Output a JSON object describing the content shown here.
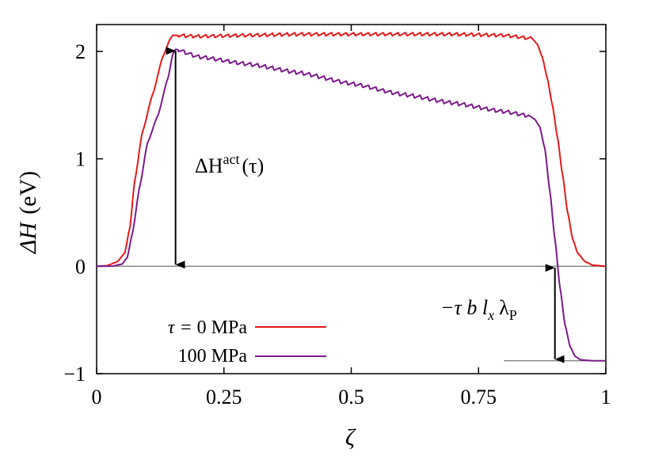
{
  "chart_data": {
    "type": "line",
    "xlabel": "ζ",
    "ylabel_symbol": "ΔH",
    "ylabel_unit": "(eV)",
    "xlim": [
      0,
      1
    ],
    "ylim": [
      -1,
      2.25
    ],
    "x_ticks": [
      0,
      0.25,
      0.5,
      0.75,
      1
    ],
    "x_tick_labels": [
      "0",
      "0.25",
      "0.5",
      "0.75",
      "1"
    ],
    "y_ticks": [
      -1,
      0,
      1,
      2
    ],
    "y_tick_labels": [
      "−1",
      "0",
      "1",
      "2"
    ],
    "grid": false,
    "legend_position": "bottom-left",
    "zero_line": true,
    "series": [
      {
        "name": "τ = 0 MPa",
        "color": "#e41a1c",
        "x": [
          0,
          0.02,
          0.04,
          0.055,
          0.065,
          0.075,
          0.09,
          0.11,
          0.13,
          0.145,
          0.15,
          0.2,
          0.3,
          0.4,
          0.5,
          0.6,
          0.7,
          0.8,
          0.855,
          0.865,
          0.875,
          0.885,
          0.895,
          0.905,
          0.915,
          0.925,
          0.935,
          0.945,
          0.96,
          0.975,
          1
        ],
        "y": [
          0,
          0.005,
          0.04,
          0.12,
          0.35,
          0.8,
          1.25,
          1.6,
          1.95,
          2.12,
          2.15,
          2.14,
          2.15,
          2.16,
          2.16,
          2.16,
          2.16,
          2.15,
          2.12,
          2.07,
          1.95,
          1.75,
          1.5,
          1.2,
          0.85,
          0.5,
          0.25,
          0.12,
          0.04,
          0.01,
          0
        ],
        "ripple_start": 0.16,
        "ripple_end": 0.855,
        "ripple_amp": 0.03
      },
      {
        "name": "100 MPa",
        "color": "#7b1a8a",
        "x": [
          0,
          0.03,
          0.05,
          0.06,
          0.07,
          0.085,
          0.1,
          0.12,
          0.14,
          0.15,
          0.155,
          0.2,
          0.3,
          0.4,
          0.5,
          0.6,
          0.7,
          0.8,
          0.85,
          0.86,
          0.87,
          0.88,
          0.89,
          0.9,
          0.91,
          0.92,
          0.93,
          0.94,
          0.95,
          0.96,
          0.975,
          1
        ],
        "y": [
          0,
          0,
          0.02,
          0.08,
          0.3,
          0.75,
          1.15,
          1.4,
          1.75,
          1.98,
          2.02,
          1.95,
          1.88,
          1.8,
          1.7,
          1.6,
          1.52,
          1.44,
          1.4,
          1.37,
          1.3,
          1.1,
          0.7,
          0.25,
          -0.2,
          -0.55,
          -0.75,
          -0.84,
          -0.87,
          -0.875,
          -0.88,
          -0.88
        ],
        "ripple_start": 0.16,
        "ripple_end": 0.85,
        "ripple_amp": 0.035
      }
    ],
    "legend_prefix": "τ = ",
    "legend_entries": [
      "0 MPa",
      "100 MPa"
    ],
    "annotations": {
      "activation_symbol": "ΔH",
      "activation_sup": "act",
      "activation_arg": "(τ)",
      "activation_arrow": {
        "x": 0.155,
        "y_from": 2.02,
        "y_to": 0
      },
      "work_text_main": "−τ b l",
      "work_sub_x": "x",
      "work_lambda": "λ",
      "work_sub_p": "P",
      "work_arrow": {
        "x": 0.9,
        "y_from": 0,
        "y_to": -0.88
      },
      "work_baseline": {
        "x_from": 0.8,
        "x_to": 1,
        "y": -0.88
      }
    }
  }
}
